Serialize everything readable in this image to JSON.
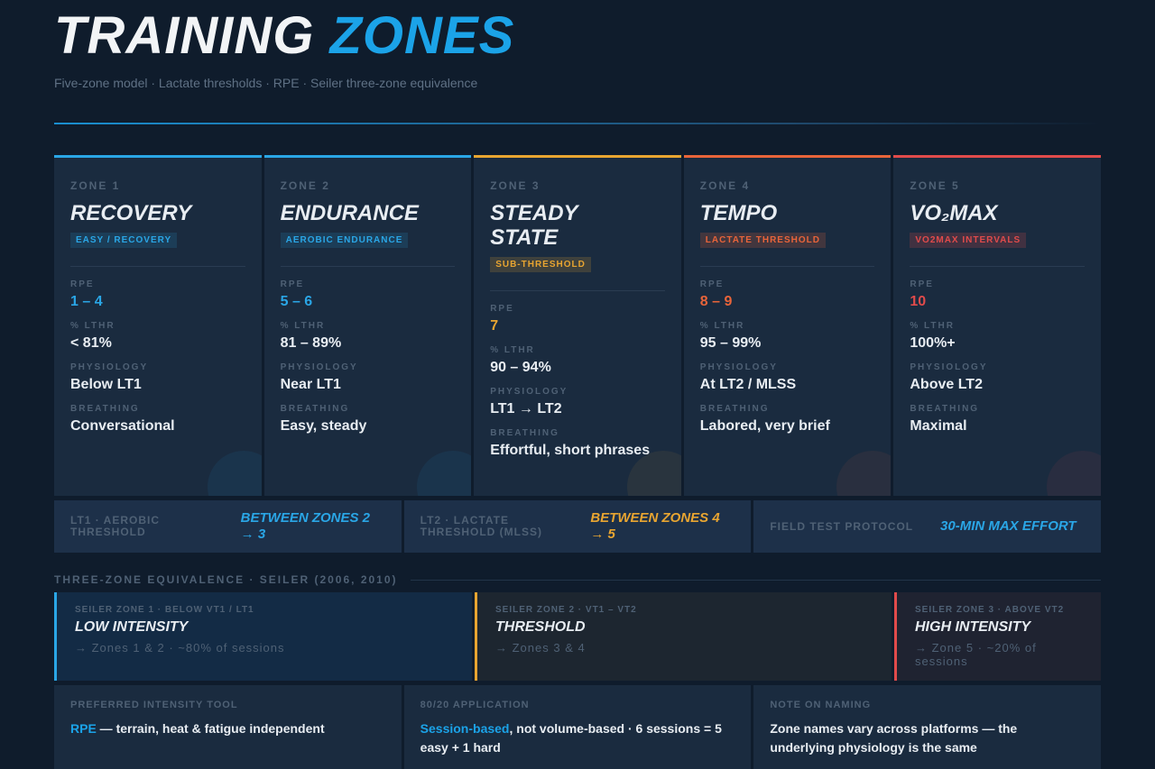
{
  "header": {
    "title_a": "TRAINING",
    "title_b": "ZONES",
    "subtitle": "Five-zone model · Lactate thresholds · RPE · Seiler three-zone equivalence"
  },
  "field_labels": {
    "rpe": "RPE",
    "lthr": "% LTHR",
    "physiology": "PHYSIOLOGY",
    "breathing": "BREATHING"
  },
  "zones": [
    {
      "label": "ZONE 1",
      "name": "RECOVERY",
      "tag": "EASY / RECOVERY",
      "rpe": "1 – 4",
      "lthr": "< 81%",
      "physiology": "Below LT1",
      "breathing": "Conversational"
    },
    {
      "label": "ZONE 2",
      "name": "ENDURANCE",
      "tag": "AEROBIC ENDURANCE",
      "rpe": "5 – 6",
      "lthr": "81 – 89%",
      "physiology": "Near LT1",
      "breathing": "Easy, steady"
    },
    {
      "label": "ZONE 3",
      "name": "STEADY STATE",
      "tag": "SUB-THRESHOLD",
      "rpe": "7",
      "lthr": "90 – 94%",
      "physiology": "LT1 → LT2",
      "breathing": "Effortful, short phrases"
    },
    {
      "label": "ZONE 4",
      "name": "TEMPO",
      "tag": "LACTATE THRESHOLD",
      "rpe": "8 – 9",
      "lthr": "95 – 99%",
      "physiology": "At LT2 / MLSS",
      "breathing": "Labored, very brief"
    },
    {
      "label": "ZONE 5",
      "name": "VO₂MAX",
      "tag": "VO2MAX INTERVALS",
      "rpe": "10",
      "lthr": "100%+",
      "physiology": "Above LT2",
      "breathing": "Maximal"
    }
  ],
  "thresholds": [
    {
      "label": "LT1 · AEROBIC THRESHOLD",
      "value": "BETWEEN ZONES 2 → 3"
    },
    {
      "label": "LT2 · LACTATE THRESHOLD (MLSS)",
      "value": "BETWEEN ZONES 4 → 5"
    },
    {
      "label": "FIELD TEST PROTOCOL",
      "value": "30-MIN MAX EFFORT"
    }
  ],
  "seiler": {
    "title": "THREE-ZONE EQUIVALENCE · SEILER (2006, 2010)",
    "zones": [
      {
        "label": "SEILER ZONE 1 · BELOW VT1 / LT1",
        "name": "LOW INTENSITY",
        "note": "→ Zones 1 & 2 · ~80% of sessions"
      },
      {
        "label": "SEILER ZONE 2 · VT1 – VT2",
        "name": "THRESHOLD",
        "note": "→ Zones 3 & 4"
      },
      {
        "label": "SEILER ZONE 3 · ABOVE VT2",
        "name": "HIGH INTENSITY",
        "note": "→ Zone 5 · ~20% of sessions"
      }
    ]
  },
  "notes": [
    {
      "label": "PREFERRED INTENSITY TOOL",
      "highlight": "RPE",
      "text": " — terrain, heat & fatigue independent"
    },
    {
      "label": "80/20 APPLICATION",
      "highlight": "Session-based",
      "text": ", not volume-based · 6 sessions = 5 easy + 1 hard"
    },
    {
      "label": "NOTE ON NAMING",
      "text": "Zone names vary across platforms — the underlying physiology is the same"
    }
  ]
}
